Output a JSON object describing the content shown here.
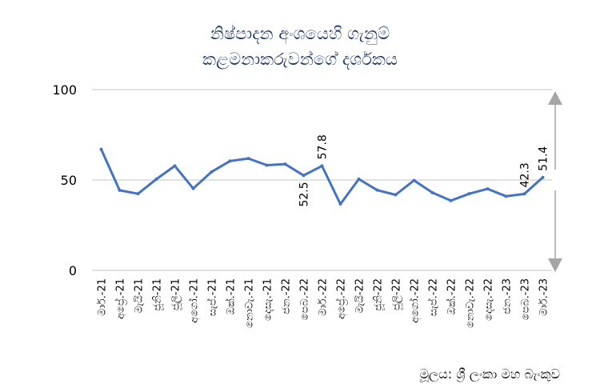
{
  "chart_data": {
    "type": "line",
    "title_lines": [
      "නිෂ්පාදන අංශයෙහි ගැනුම්",
      "කළමනාකරුවන්ගේ දර්ශකය"
    ],
    "categories": [
      "මාර්.-21",
      "අප්‍රේ.-21",
      "මැයි-21",
      "ජූනි-21",
      "ජූලි-21",
      "අගෝ.-21",
      "සැප්.-21",
      "ඔක්.-21",
      "නොවැ.-21",
      "දෙසැ.-21",
      "ජන.-22",
      "පෙබ.-22",
      "මාර්.-22",
      "අප්‍රේ.-22",
      "මැයි-22",
      "ජූනි-22",
      "ජූලි-22",
      "අගෝ.-22",
      "සැප්.-22",
      "ඔක්.-22",
      "නොවැ.-22",
      "දෙසැ.-22",
      "ජන.-23",
      "පෙබ.-23",
      "මාර්.-23"
    ],
    "series": [
      {
        "values": [
          67.0,
          44.3,
          42.4,
          50.5,
          57.8,
          45.3,
          54.5,
          60.5,
          61.9,
          58.2,
          58.8,
          52.5,
          57.8,
          36.7,
          50.5,
          44.4,
          41.8,
          49.8,
          43.0,
          38.6,
          42.4,
          45.1,
          41.0,
          42.3,
          51.4
        ],
        "color": "#4472c4"
      }
    ],
    "data_labels": [
      {
        "index": 11,
        "text": "52.5"
      },
      {
        "index": 12,
        "text": "57.8"
      },
      {
        "index": 23,
        "text": "42.3"
      },
      {
        "index": 24,
        "text": "51.4"
      }
    ],
    "ylim": [
      0,
      100
    ],
    "yticks": [
      0,
      50,
      100
    ],
    "grid": true,
    "legend": "none",
    "arrows": "both-directions-at-right",
    "gridline_color": "#d9d9d9",
    "arrow_color": "#a6a6a6"
  },
  "source_text": "මූලය: ශ්‍රී ලංකා මහ බැංකුව"
}
